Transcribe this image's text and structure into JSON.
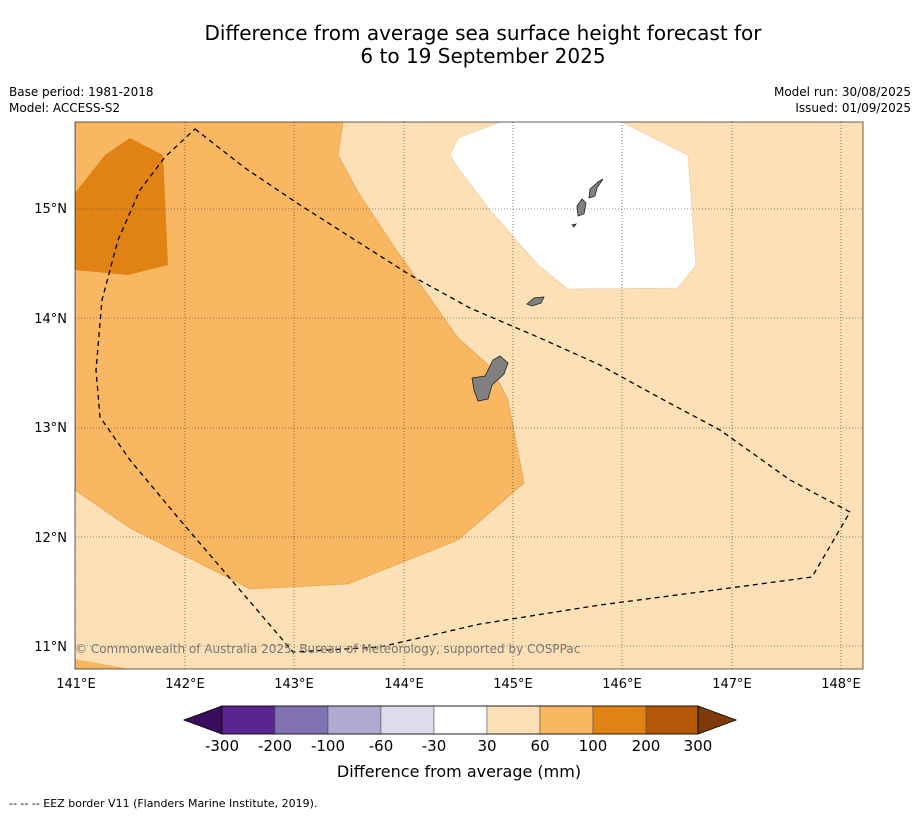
{
  "title": {
    "line1": "Difference from average sea surface height forecast for",
    "line2": "6 to 19 September 2025"
  },
  "meta": {
    "base_period": "Base period: 1981-2018",
    "model": "Model: ACCESS-S2",
    "model_run": "Model run: 30/08/2025",
    "issued": "Issued: 01/09/2025"
  },
  "map": {
    "lat_labels": [
      "15°N",
      "14°N",
      "13°N",
      "12°N",
      "11°N"
    ],
    "lon_labels": [
      "141°E",
      "142°E",
      "143°E",
      "144°E",
      "145°E",
      "146°E",
      "147°E",
      "148°E"
    ],
    "copyright": "© Commonwealth of Australia 2025, Bureau of Meteorology, supported by COSPPac",
    "land_color": "#808080",
    "eez_style": "dashed black line"
  },
  "colorbar": {
    "title": "Difference from average (mm)",
    "ticks": [
      "-300",
      "-200",
      "-100",
      "-60",
      "-30",
      "30",
      "60",
      "100",
      "200",
      "300"
    ],
    "colors": [
      "#3b0b5e",
      "#5a2590",
      "#8172b1",
      "#b0a9d2",
      "#dddcee",
      "#ffffff",
      "#fde0b5",
      "#f9b762",
      "#e08214",
      "#b35806",
      "#7f3b08"
    ]
  },
  "footnote": "-- -- -- EEZ border V11 (Flanders Marine Institute, 2019)."
}
